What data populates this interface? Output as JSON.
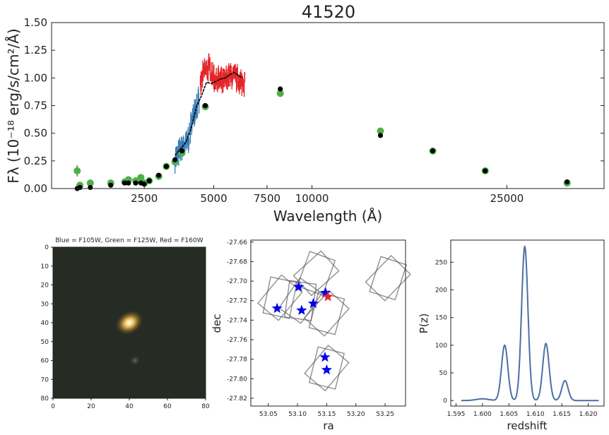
{
  "panels": {
    "sed": {
      "title": "41520",
      "xlabel": "Wavelength (Å)",
      "ylabel": "Fλ (10⁻¹⁸ erg/s/cm²/Å)"
    },
    "image": {
      "title": "Blue = F105W, Green = F125W, Red = F160W"
    },
    "sky": {
      "xlabel": "ra",
      "ylabel": "dec"
    },
    "pz": {
      "xlabel": "redshift",
      "ylabel": "P(z)"
    }
  },
  "colors": {
    "grism_blue": "#3a7db8",
    "grism_red": "#e3262b",
    "model_black": "#000000",
    "photometry_green": "#4daf4a",
    "pz_line": "#4a6fa5",
    "stars_blue": "#0000ee",
    "star_red": "#e3262b"
  },
  "chart_data": [
    {
      "type": "scatter",
      "name": "sed",
      "title": "41520",
      "xscale": "sqrt",
      "xlim": [
        500,
        35000
      ],
      "ylim": [
        0,
        1.5
      ],
      "xticks": [
        2500,
        5000,
        7500,
        10000,
        25000
      ],
      "xtick_labels": [
        "2500",
        "5000",
        "7500",
        "10000",
        "25000"
      ],
      "yticks": [
        0.0,
        0.25,
        0.5,
        0.75,
        1.0,
        1.25,
        1.5
      ],
      "ytick_labels": [
        "0.00",
        "0.25",
        "0.50",
        "0.75",
        "1.00",
        "1.25",
        "1.50"
      ],
      "observed_photometry": {
        "x": [
          900,
          950,
          1150,
          1600,
          1950,
          2050,
          2250,
          2400,
          2500,
          2650,
          2950,
          3200,
          3500,
          3750,
          4650,
          8200,
          14500,
          18500,
          23000,
          31000
        ],
        "y": [
          0.16,
          0.03,
          0.05,
          0.05,
          0.06,
          0.08,
          0.07,
          0.1,
          0.05,
          0.07,
          0.11,
          0.2,
          0.24,
          0.32,
          0.74,
          0.86,
          0.52,
          0.34,
          0.16,
          0.05
        ]
      },
      "model_photometry": {
        "x": [
          900,
          950,
          1150,
          1600,
          1950,
          2050,
          2250,
          2400,
          2500,
          2650,
          2950,
          3200,
          3500,
          3750,
          4650,
          8200,
          14500,
          18500,
          23000,
          31000
        ],
        "y": [
          0.0,
          0.01,
          0.01,
          0.03,
          0.05,
          0.05,
          0.05,
          0.05,
          0.04,
          0.07,
          0.12,
          0.2,
          0.26,
          0.34,
          0.75,
          0.9,
          0.48,
          0.34,
          0.16,
          0.06
        ]
      },
      "grism_blue": {
        "x": [
          3500,
          3600,
          3700,
          3800,
          3900,
          4000,
          4100,
          4200,
          4300,
          4400
        ],
        "y": [
          0.28,
          0.3,
          0.34,
          0.38,
          0.4,
          0.45,
          0.58,
          0.7,
          0.76,
          0.78
        ]
      },
      "grism_red": {
        "x": [
          4450,
          4600,
          4800,
          5000,
          5200,
          5400,
          5600,
          5800,
          6000,
          6200,
          6400
        ],
        "y": [
          0.92,
          1.06,
          1.1,
          1.0,
          0.98,
          0.95,
          1.0,
          1.02,
          1.0,
          0.96,
          0.97
        ]
      },
      "model_spectrum": {
        "x": [
          3500,
          3700,
          3900,
          4100,
          4300,
          4500,
          4700,
          4900,
          5100,
          5300,
          5500,
          5700,
          5900,
          6100,
          6300
        ],
        "y": [
          0.3,
          0.36,
          0.42,
          0.55,
          0.74,
          0.84,
          0.96,
          0.95,
          0.97,
          0.99,
          1.0,
          1.03,
          1.05,
          1.02,
          1.0
        ]
      }
    },
    {
      "type": "heatmap",
      "name": "cutout",
      "title": "Blue = F105W, Green = F125W, Red = F160W",
      "xlim": [
        0,
        80
      ],
      "ylim": [
        80,
        0
      ],
      "xticks": [
        0,
        20,
        40,
        60,
        80
      ],
      "yticks": [
        0,
        10,
        20,
        30,
        40,
        50,
        60,
        70,
        80
      ],
      "sources": [
        {
          "x": 40,
          "y": 40
        },
        {
          "x": 43,
          "y": 60
        }
      ]
    },
    {
      "type": "scatter",
      "name": "sky",
      "xlabel": "ra",
      "ylabel": "dec",
      "xlim": [
        53.02,
        53.285
      ],
      "ylim": [
        -27.828,
        -27.658
      ],
      "xticks": [
        53.05,
        53.1,
        53.15,
        53.2,
        53.25
      ],
      "yticks": [
        -27.66,
        -27.68,
        -27.7,
        -27.72,
        -27.74,
        -27.76,
        -27.78,
        -27.8,
        -27.82
      ],
      "footprints": [
        {
          "ra": 53.07,
          "dec": -27.717,
          "angles": [
            12,
            40
          ]
        },
        {
          "ra": 53.105,
          "dec": -27.72,
          "angles": [
            8,
            35
          ]
        },
        {
          "ra": 53.132,
          "dec": -27.692,
          "angles": [
            20,
            48
          ]
        },
        {
          "ra": 53.15,
          "dec": -27.733,
          "angles": [
            15,
            42
          ]
        },
        {
          "ra": 53.255,
          "dec": -27.697,
          "angles": [
            18,
            44
          ]
        },
        {
          "ra": 53.15,
          "dec": -27.789,
          "angles": [
            14,
            40
          ]
        }
      ],
      "blue_stars": {
        "ra": [
          53.065,
          53.102,
          53.107,
          53.127,
          53.148,
          53.147,
          53.15
        ],
        "dec": [
          -27.728,
          -27.706,
          -27.73,
          -27.723,
          -27.712,
          -27.778,
          -27.791
        ]
      },
      "red_star": {
        "ra": 53.152,
        "dec": -27.716
      }
    },
    {
      "type": "line",
      "name": "pz",
      "xlabel": "redshift",
      "ylabel": "P(z)",
      "xlim": [
        1.594,
        1.623
      ],
      "ylim": [
        -10,
        290
      ],
      "xticks": [
        1.595,
        1.6,
        1.605,
        1.61,
        1.615,
        1.62
      ],
      "xtick_labels": [
        "1.595",
        "1.600",
        "1.605",
        "1.610",
        "1.615",
        "1.620"
      ],
      "yticks": [
        0,
        50,
        100,
        150,
        200,
        250
      ],
      "peaks": [
        {
          "z": 1.6,
          "height": 3,
          "width": 0.0012
        },
        {
          "z": 1.6042,
          "height": 100,
          "width": 0.0006
        },
        {
          "z": 1.608,
          "height": 278,
          "width": 0.0006
        },
        {
          "z": 1.612,
          "height": 103,
          "width": 0.0006
        },
        {
          "z": 1.6156,
          "height": 36,
          "width": 0.0006
        }
      ],
      "z_range": [
        1.596,
        1.622
      ]
    }
  ]
}
